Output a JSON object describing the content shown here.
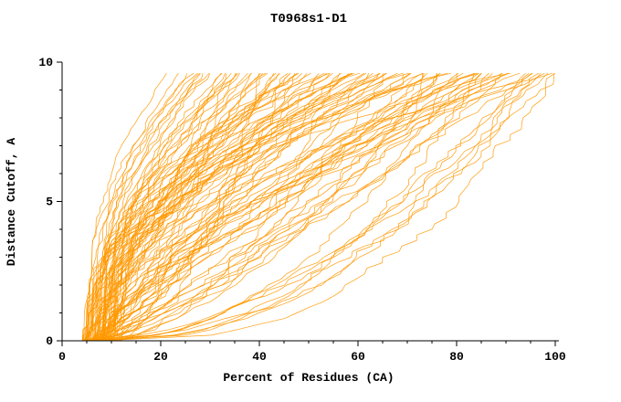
{
  "page": {
    "background": "#ffffff"
  },
  "chart_data": {
    "type": "line",
    "title": "T0968s1-D1",
    "xlabel": "Percent of Residues (CA)",
    "ylabel": "Distance Cutoff, A",
    "xlim": [
      0,
      100
    ],
    "ylim": [
      0,
      10
    ],
    "x_major_ticks": [
      0,
      20,
      40,
      60,
      80,
      100
    ],
    "x_minor_step": 5,
    "y_major_ticks": [
      0,
      5,
      10
    ],
    "y_minor_step": 1,
    "grid": false,
    "legend": "none",
    "line_color": "#ff9800",
    "axis_color": "#000000",
    "curve_family": {
      "description": "Approximately 110 overlapping per-model cumulative accuracy curves (CASP-style); each curve rises monotonically from about (4-10 percent, 0 A) to (end_percent, 9.7 A)",
      "y_top": 9.7,
      "y_step": 0.2,
      "x_start_range": [
        4,
        10
      ],
      "seed": 1337,
      "end_percents": [
        22,
        24,
        26,
        27,
        28,
        29,
        30,
        30,
        31,
        32,
        33,
        34,
        35,
        35,
        36,
        37,
        38,
        39,
        40,
        40,
        41,
        42,
        43,
        44,
        45,
        45,
        46,
        47,
        48,
        49,
        50,
        50,
        51,
        52,
        53,
        54,
        55,
        55,
        56,
        57,
        58,
        59,
        60,
        60,
        61,
        62,
        63,
        64,
        65,
        65,
        66,
        67,
        68,
        69,
        70,
        70,
        71,
        72,
        73,
        74,
        75,
        75,
        76,
        77,
        78,
        79,
        80,
        80,
        81,
        82,
        83,
        84,
        85,
        86,
        87,
        88,
        89,
        90,
        91,
        92,
        93,
        94,
        95,
        96,
        97,
        98,
        99,
        100,
        100,
        100,
        98,
        96,
        93,
        90,
        87,
        84,
        80,
        76,
        72,
        68,
        64,
        60,
        56,
        52,
        48,
        44,
        40,
        36,
        32,
        28
      ]
    }
  }
}
